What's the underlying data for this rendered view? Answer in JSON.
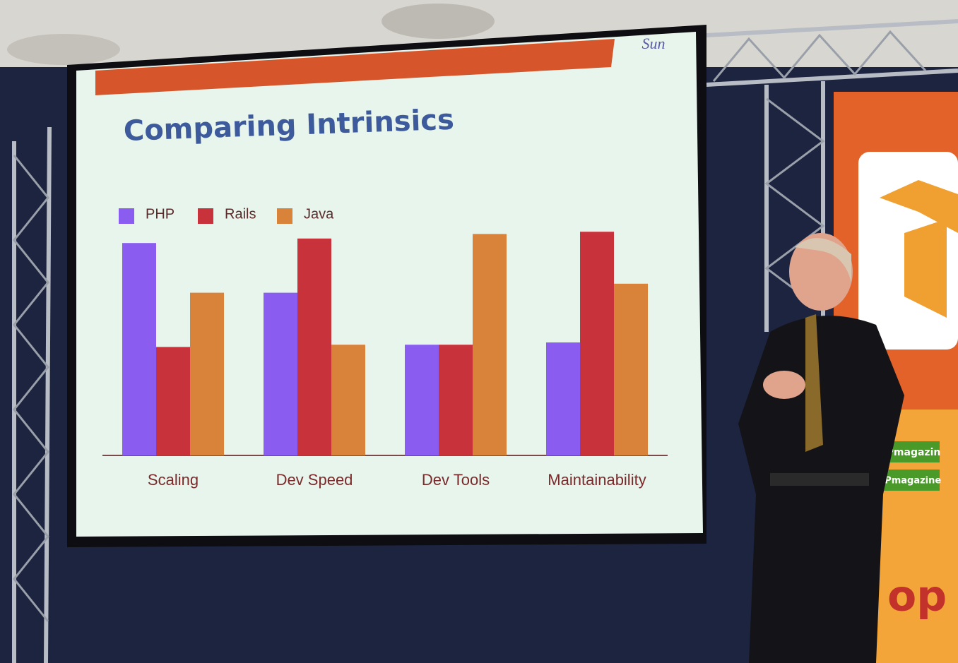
{
  "chart_data": {
    "type": "bar",
    "title": "Comparing Intrinsics",
    "categories": [
      "Scaling",
      "Dev Speed",
      "Dev Tools",
      "Maintainability"
    ],
    "series": [
      {
        "name": "PHP",
        "color": "#8a5cf0",
        "values": [
          94,
          72,
          49,
          50
        ]
      },
      {
        "name": "Rails",
        "color": "#c8323a",
        "values": [
          48,
          96,
          49,
          99
        ]
      },
      {
        "name": "Java",
        "color": "#d9823a",
        "values": [
          72,
          49,
          98,
          76
        ]
      }
    ],
    "ylim": [
      0,
      100
    ]
  },
  "scene": {
    "logo": "Sun",
    "banner_texts": [
      "PHPmagazin",
      "PHPmagazine",
      "op"
    ]
  }
}
